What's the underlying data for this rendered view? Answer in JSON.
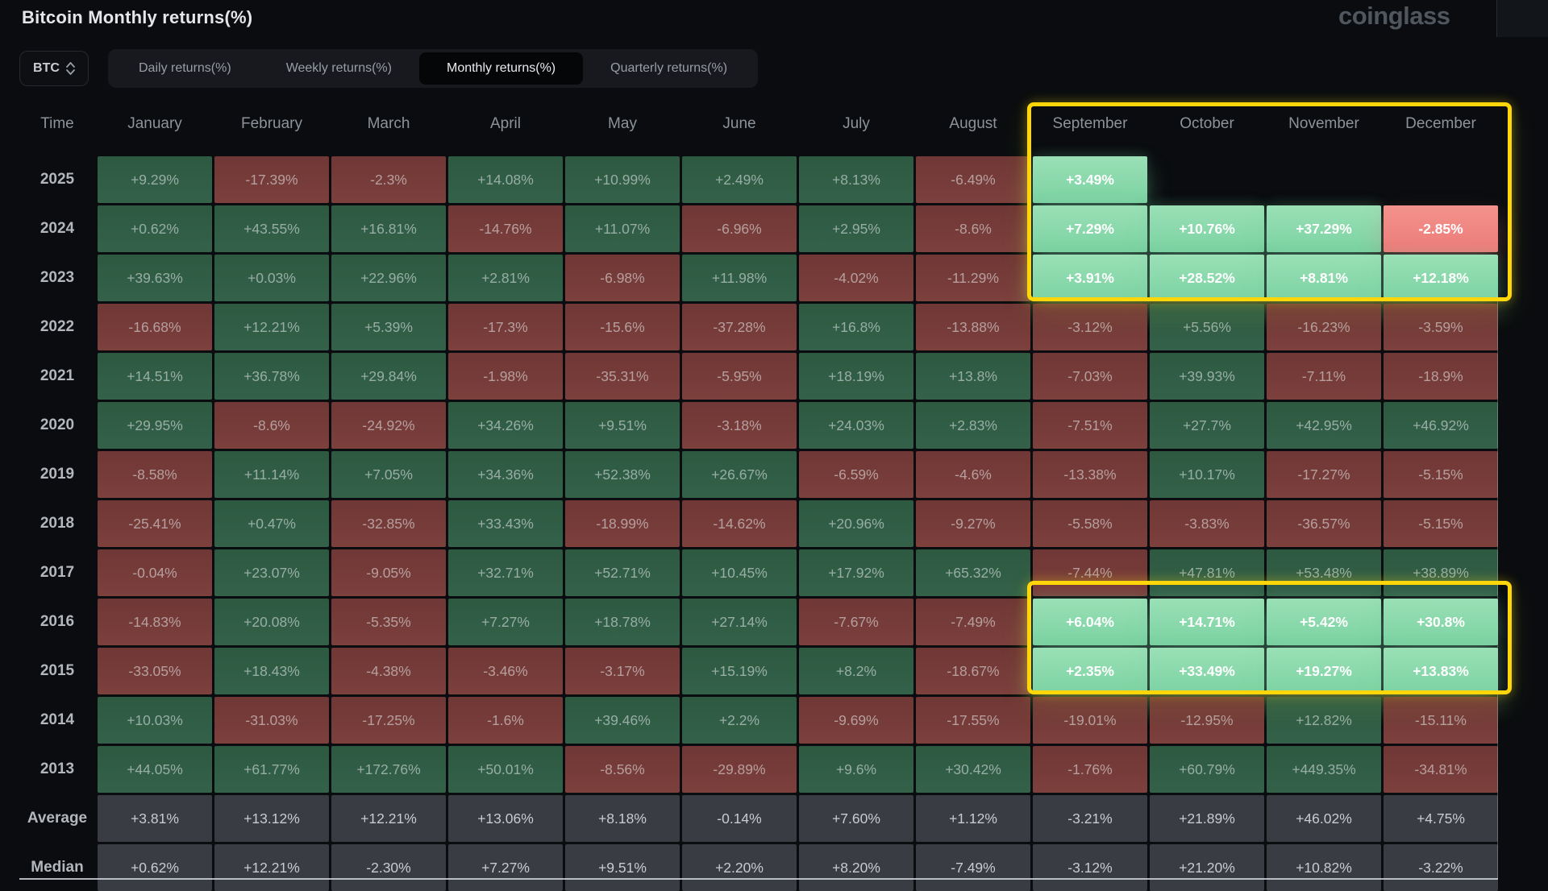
{
  "header": {
    "title": "Bitcoin Monthly returns(%)",
    "logo": "coinglass"
  },
  "toolbar": {
    "coin": "BTC",
    "tabs": [
      {
        "label": "Daily returns(%)",
        "active": false
      },
      {
        "label": "Weekly returns(%)",
        "active": false
      },
      {
        "label": "Monthly returns(%)",
        "active": true
      },
      {
        "label": "Quarterly returns(%)",
        "active": false
      }
    ]
  },
  "table": {
    "time_header": "Time",
    "months": [
      "January",
      "February",
      "March",
      "April",
      "May",
      "June",
      "July",
      "August",
      "September",
      "October",
      "November",
      "December"
    ],
    "rows": [
      {
        "label": "2025",
        "kind": "year",
        "hl": [
          8
        ],
        "values": [
          "+9.29%",
          "-17.39%",
          "-2.3%",
          "+14.08%",
          "+10.99%",
          "+2.49%",
          "+8.13%",
          "-6.49%",
          "+3.49%",
          null,
          null,
          null
        ]
      },
      {
        "label": "2024",
        "kind": "year",
        "hl": [
          8,
          9,
          10,
          11
        ],
        "values": [
          "+0.62%",
          "+43.55%",
          "+16.81%",
          "-14.76%",
          "+11.07%",
          "-6.96%",
          "+2.95%",
          "-8.6%",
          "+7.29%",
          "+10.76%",
          "+37.29%",
          "-2.85%"
        ]
      },
      {
        "label": "2023",
        "kind": "year",
        "hl": [
          8,
          9,
          10,
          11
        ],
        "values": [
          "+39.63%",
          "+0.03%",
          "+22.96%",
          "+2.81%",
          "-6.98%",
          "+11.98%",
          "-4.02%",
          "-11.29%",
          "+3.91%",
          "+28.52%",
          "+8.81%",
          "+12.18%"
        ]
      },
      {
        "label": "2022",
        "kind": "year",
        "hl": [],
        "values": [
          "-16.68%",
          "+12.21%",
          "+5.39%",
          "-17.3%",
          "-15.6%",
          "-37.28%",
          "+16.8%",
          "-13.88%",
          "-3.12%",
          "+5.56%",
          "-16.23%",
          "-3.59%"
        ]
      },
      {
        "label": "2021",
        "kind": "year",
        "hl": [],
        "values": [
          "+14.51%",
          "+36.78%",
          "+29.84%",
          "-1.98%",
          "-35.31%",
          "-5.95%",
          "+18.19%",
          "+13.8%",
          "-7.03%",
          "+39.93%",
          "-7.11%",
          "-18.9%"
        ]
      },
      {
        "label": "2020",
        "kind": "year",
        "hl": [],
        "values": [
          "+29.95%",
          "-8.6%",
          "-24.92%",
          "+34.26%",
          "+9.51%",
          "-3.18%",
          "+24.03%",
          "+2.83%",
          "-7.51%",
          "+27.7%",
          "+42.95%",
          "+46.92%"
        ]
      },
      {
        "label": "2019",
        "kind": "year",
        "hl": [],
        "values": [
          "-8.58%",
          "+11.14%",
          "+7.05%",
          "+34.36%",
          "+52.38%",
          "+26.67%",
          "-6.59%",
          "-4.6%",
          "-13.38%",
          "+10.17%",
          "-17.27%",
          "-5.15%"
        ]
      },
      {
        "label": "2018",
        "kind": "year",
        "hl": [],
        "values": [
          "-25.41%",
          "+0.47%",
          "-32.85%",
          "+33.43%",
          "-18.99%",
          "-14.62%",
          "+20.96%",
          "-9.27%",
          "-5.58%",
          "-3.83%",
          "-36.57%",
          "-5.15%"
        ]
      },
      {
        "label": "2017",
        "kind": "year",
        "hl": [],
        "values": [
          "-0.04%",
          "+23.07%",
          "-9.05%",
          "+32.71%",
          "+52.71%",
          "+10.45%",
          "+17.92%",
          "+65.32%",
          "-7.44%",
          "+47.81%",
          "+53.48%",
          "+38.89%"
        ]
      },
      {
        "label": "2016",
        "kind": "year",
        "hl": [
          8,
          9,
          10,
          11
        ],
        "values": [
          "-14.83%",
          "+20.08%",
          "-5.35%",
          "+7.27%",
          "+18.78%",
          "+27.14%",
          "-7.67%",
          "-7.49%",
          "+6.04%",
          "+14.71%",
          "+5.42%",
          "+30.8%"
        ]
      },
      {
        "label": "2015",
        "kind": "year",
        "hl": [
          8,
          9,
          10,
          11
        ],
        "values": [
          "-33.05%",
          "+18.43%",
          "-4.38%",
          "-3.46%",
          "-3.17%",
          "+15.19%",
          "+8.2%",
          "-18.67%",
          "+2.35%",
          "+33.49%",
          "+19.27%",
          "+13.83%"
        ]
      },
      {
        "label": "2014",
        "kind": "year",
        "hl": [],
        "values": [
          "+10.03%",
          "-31.03%",
          "-17.25%",
          "-1.6%",
          "+39.46%",
          "+2.2%",
          "-9.69%",
          "-17.55%",
          "-19.01%",
          "-12.95%",
          "+12.82%",
          "-15.11%"
        ]
      },
      {
        "label": "2013",
        "kind": "year",
        "hl": [],
        "values": [
          "+44.05%",
          "+61.77%",
          "+172.76%",
          "+50.01%",
          "-8.56%",
          "-29.89%",
          "+9.6%",
          "+30.42%",
          "-1.76%",
          "+60.79%",
          "+449.35%",
          "-34.81%"
        ]
      },
      {
        "label": "Average",
        "kind": "summary",
        "hl": [],
        "values": [
          "+3.81%",
          "+13.12%",
          "+12.21%",
          "+13.06%",
          "+8.18%",
          "-0.14%",
          "+7.60%",
          "+1.12%",
          "-3.21%",
          "+21.89%",
          "+46.02%",
          "+4.75%"
        ]
      },
      {
        "label": "Median",
        "kind": "summary",
        "hl": [],
        "values": [
          "+0.62%",
          "+12.21%",
          "-2.30%",
          "+7.27%",
          "+9.51%",
          "+2.20%",
          "+8.20%",
          "-7.49%",
          "-3.12%",
          "+21.20%",
          "+10.82%",
          "-3.22%"
        ]
      }
    ]
  },
  "colors": {
    "positive": "#31604a",
    "negative": "#7a3c39",
    "highlight_positive": "#8bd8aa",
    "highlight_negative": "#ee807c",
    "summary": "#393c42",
    "highlight_border": "#ffd60a"
  }
}
